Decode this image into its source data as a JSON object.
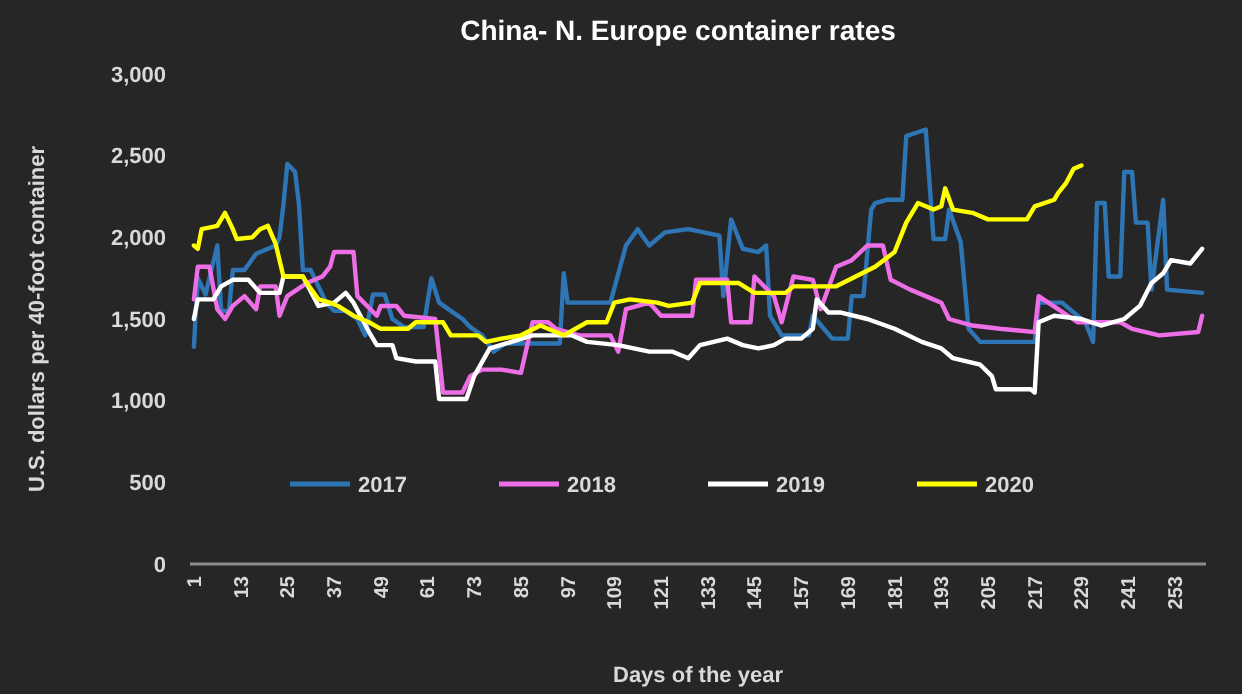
{
  "chart_data": {
    "type": "line",
    "title": "China- N. Europe container rates",
    "xlabel": "Days of the year",
    "ylabel": "U.S. dollars per 40-foot container",
    "xlim": [
      0,
      261
    ],
    "xticks": [
      1,
      13,
      25,
      37,
      49,
      61,
      73,
      85,
      97,
      109,
      121,
      133,
      145,
      157,
      169,
      181,
      193,
      205,
      217,
      229,
      241,
      253
    ],
    "ylim": [
      0,
      3000
    ],
    "yticks": [
      0,
      500,
      {
        "value": 1000,
        "label": "1,000"
      },
      {
        "value": 1500,
        "label": "1,500"
      },
      {
        "value": 2000,
        "label": "2,000"
      },
      {
        "value": 2500,
        "label": "2,500"
      },
      {
        "value": 3000,
        "label": "3,000"
      }
    ],
    "grid": false,
    "legend": "bottom",
    "marker": "none",
    "line_style": "solid",
    "series": [
      {
        "name": "2017",
        "color": "#2e75b6",
        "x": [
          1,
          2,
          4,
          7,
          8,
          10,
          11,
          14,
          17,
          22,
          23,
          24,
          25,
          27,
          28,
          29,
          31,
          33,
          35,
          37,
          40,
          43,
          45,
          47,
          50,
          52,
          55,
          60,
          62,
          64,
          67,
          70,
          72,
          75,
          78,
          81,
          85,
          90,
          95,
          96,
          97,
          100,
          108,
          112,
          115,
          118,
          122,
          128,
          136,
          137,
          139,
          142,
          146,
          148,
          149,
          152,
          159,
          160,
          165,
          169,
          170,
          173,
          175,
          176,
          179,
          183,
          184,
          189,
          191,
          194,
          195,
          198,
          200,
          203,
          217,
          218,
          224,
          230,
          232,
          233,
          235,
          236,
          239,
          240,
          242,
          243,
          246,
          247,
          250,
          251,
          260
        ],
        "values": [
          1330,
          1750,
          1650,
          1950,
          1550,
          1550,
          1800,
          1800,
          1900,
          1950,
          2000,
          2200,
          2450,
          2400,
          2200,
          1800,
          1800,
          1700,
          1600,
          1550,
          1550,
          1500,
          1400,
          1650,
          1650,
          1500,
          1450,
          1450,
          1750,
          1600,
          1550,
          1500,
          1450,
          1400,
          1300,
          1350,
          1350,
          1350,
          1350,
          1780,
          1600,
          1600,
          1600,
          1950,
          2050,
          1950,
          2030,
          2050,
          2010,
          1640,
          2110,
          1930,
          1910,
          1950,
          1520,
          1400,
          1400,
          1520,
          1380,
          1380,
          1640,
          1640,
          2170,
          2210,
          2230,
          2230,
          2620,
          2660,
          1990,
          1990,
          2170,
          1970,
          1440,
          1360,
          1360,
          1600,
          1600,
          1480,
          1360,
          2210,
          2210,
          1760,
          1760,
          2400,
          2400,
          2090,
          2090,
          1680,
          2230,
          1680,
          1660
        ]
      },
      {
        "name": "2018",
        "color": "#ee6ee8",
        "x": [
          1,
          2,
          5,
          7,
          9,
          11,
          14,
          17,
          18,
          22,
          23,
          25,
          30,
          34,
          36,
          37,
          42,
          43,
          48,
          49,
          53,
          55,
          63,
          65,
          70,
          72,
          75,
          80,
          85,
          88,
          92,
          94,
          100,
          108,
          110,
          112,
          118,
          121,
          129,
          130,
          138,
          139,
          144,
          145,
          150,
          152,
          155,
          160,
          162,
          166,
          170,
          174,
          178,
          180,
          185,
          189,
          193,
          195,
          201,
          208,
          217,
          218,
          223,
          228,
          239,
          242,
          249,
          259,
          260
        ],
        "values": [
          1620,
          1820,
          1820,
          1560,
          1500,
          1580,
          1640,
          1560,
          1700,
          1700,
          1520,
          1640,
          1720,
          1760,
          1820,
          1910,
          1910,
          1640,
          1520,
          1580,
          1580,
          1520,
          1500,
          1050,
          1050,
          1150,
          1190,
          1190,
          1170,
          1480,
          1480,
          1440,
          1400,
          1400,
          1300,
          1560,
          1600,
          1520,
          1520,
          1740,
          1740,
          1480,
          1480,
          1760,
          1640,
          1480,
          1760,
          1740,
          1560,
          1820,
          1860,
          1950,
          1950,
          1740,
          1680,
          1640,
          1600,
          1500,
          1460,
          1440,
          1420,
          1640,
          1560,
          1480,
          1480,
          1440,
          1400,
          1420,
          1520
        ]
      },
      {
        "name": "2019",
        "color": "#ffffff",
        "x": [
          1,
          2,
          6,
          8,
          11,
          15,
          18,
          23,
          24,
          29,
          33,
          37,
          40,
          42,
          46,
          48,
          52,
          53,
          58,
          63,
          64,
          71,
          73,
          77,
          88,
          98,
          102,
          110,
          118,
          124,
          128,
          131,
          138,
          142,
          146,
          150,
          153,
          157,
          160,
          161,
          164,
          167,
          174,
          181,
          188,
          193,
          196,
          203,
          206,
          207,
          216,
          217,
          218,
          222,
          229,
          234,
          240,
          244,
          247,
          250,
          252,
          257,
          260
        ],
        "values": [
          1500,
          1620,
          1620,
          1700,
          1740,
          1740,
          1660,
          1660,
          1760,
          1760,
          1580,
          1600,
          1660,
          1600,
          1420,
          1340,
          1340,
          1260,
          1240,
          1240,
          1010,
          1010,
          1150,
          1320,
          1400,
          1400,
          1360,
          1340,
          1300,
          1300,
          1260,
          1340,
          1380,
          1340,
          1320,
          1340,
          1380,
          1380,
          1440,
          1620,
          1540,
          1540,
          1500,
          1440,
          1360,
          1320,
          1260,
          1220,
          1150,
          1070,
          1070,
          1050,
          1480,
          1520,
          1500,
          1460,
          1500,
          1580,
          1720,
          1780,
          1860,
          1840,
          1930
        ]
      },
      {
        "name": "2020",
        "color": "#ffff00",
        "x": [
          1,
          2,
          3,
          7,
          9,
          11,
          12,
          16,
          18,
          20,
          22,
          24,
          29,
          30,
          33,
          36,
          38,
          42,
          46,
          49,
          56,
          58,
          65,
          67,
          74,
          76,
          80,
          85,
          90,
          96,
          102,
          107,
          109,
          113,
          120,
          123,
          129,
          131,
          141,
          145,
          153,
          155,
          166,
          171,
          176,
          181,
          184,
          187,
          191,
          193,
          194,
          196,
          201,
          205,
          215,
          217,
          222,
          223,
          225,
          227,
          229
        ],
        "values": [
          1950,
          1930,
          2050,
          2070,
          2150,
          2050,
          1990,
          2000,
          2050,
          2070,
          1960,
          1760,
          1760,
          1720,
          1620,
          1600,
          1580,
          1520,
          1480,
          1440,
          1440,
          1480,
          1480,
          1400,
          1400,
          1360,
          1380,
          1400,
          1460,
          1400,
          1480,
          1480,
          1600,
          1620,
          1600,
          1580,
          1600,
          1720,
          1720,
          1660,
          1660,
          1700,
          1700,
          1760,
          1820,
          1910,
          2090,
          2210,
          2170,
          2190,
          2300,
          2170,
          2150,
          2110,
          2110,
          2190,
          2230,
          2270,
          2330,
          2420,
          2440
        ]
      }
    ]
  }
}
